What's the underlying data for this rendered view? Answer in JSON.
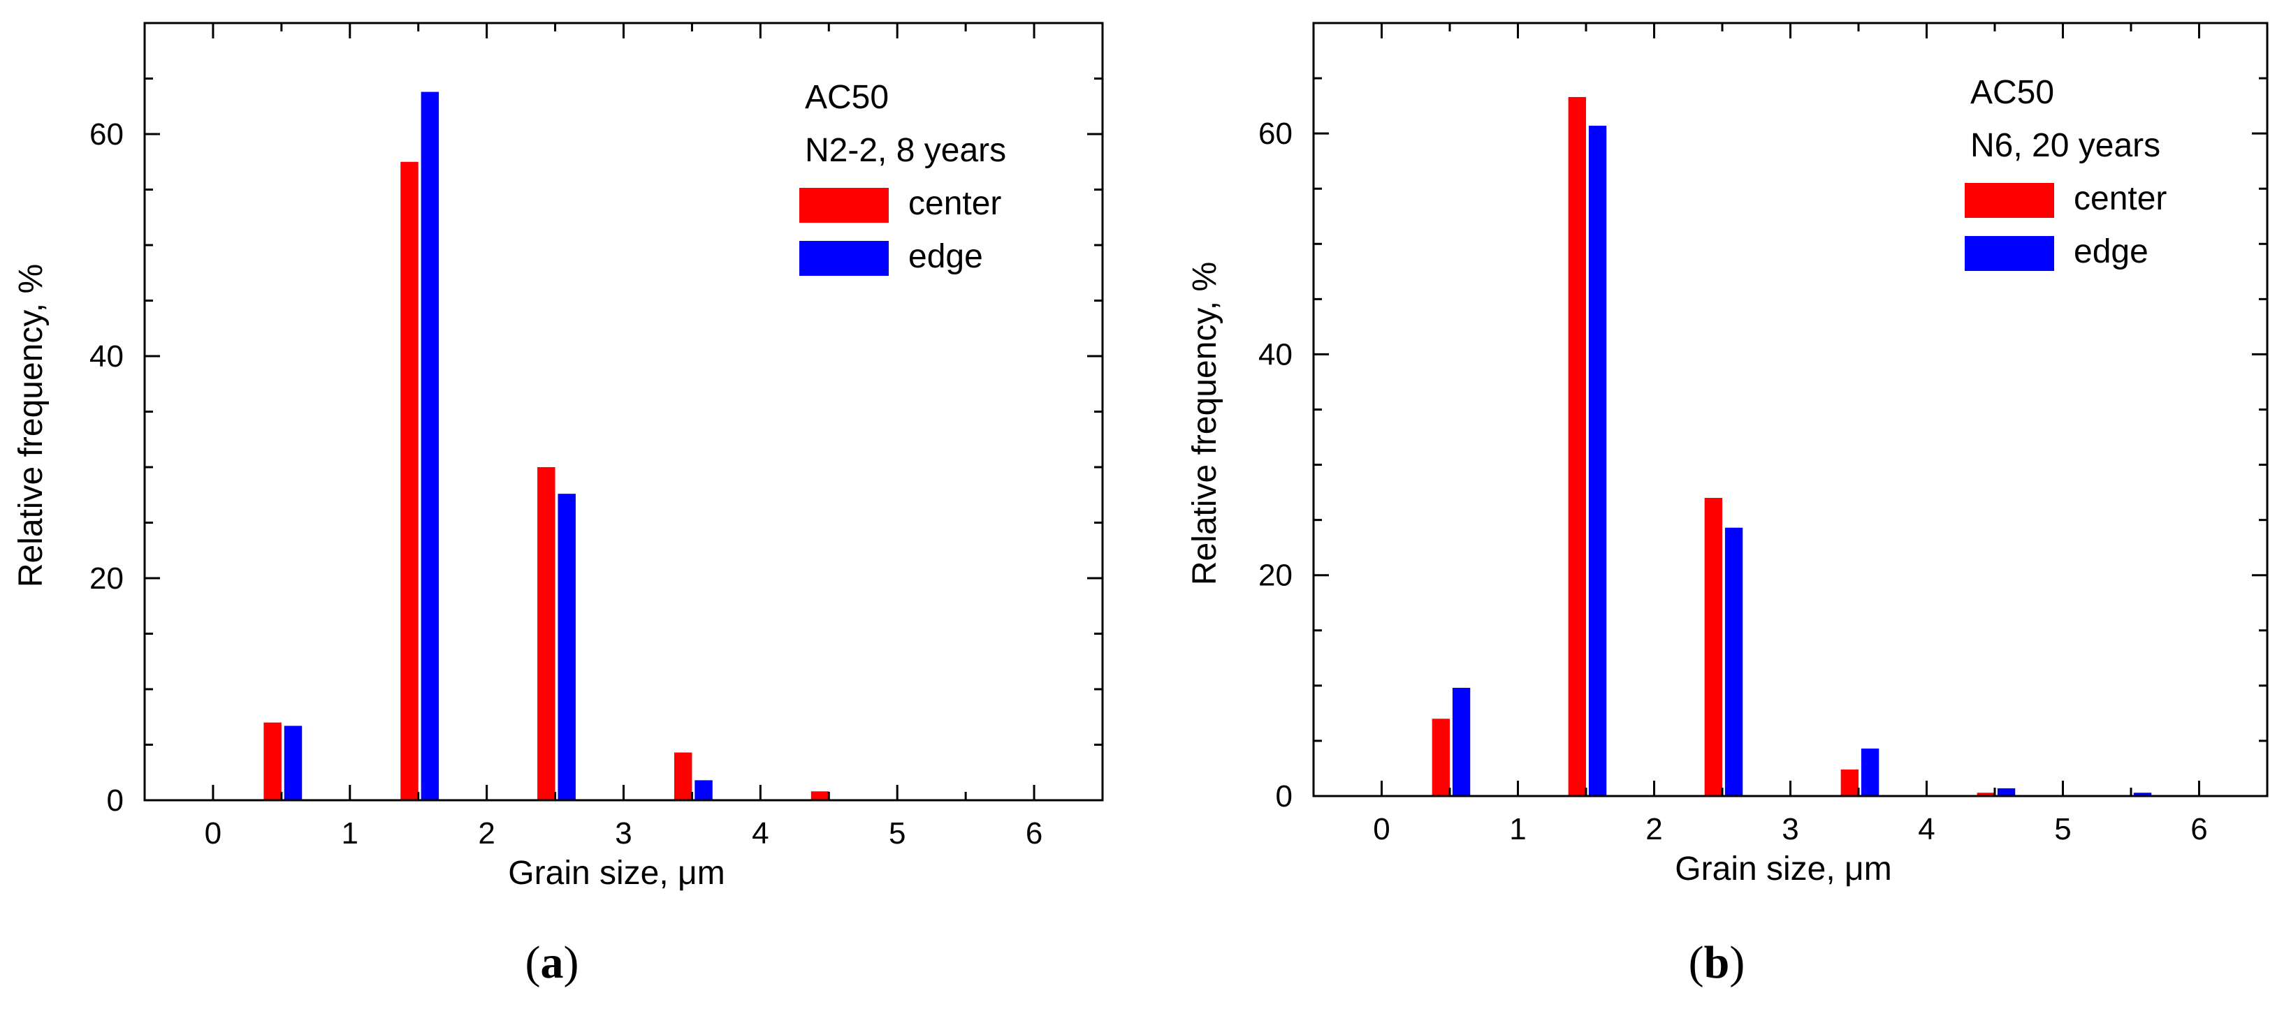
{
  "chart_data": [
    {
      "type": "bar",
      "panel_label": {
        "open": "(",
        "letter": "a",
        "close": ")"
      },
      "xlabel": "Grain size, μm",
      "ylabel": "Relative frequency, %",
      "xlim": [
        -0.5,
        6.5
      ],
      "ylim": [
        0,
        70
      ],
      "xticks": [
        0,
        1,
        2,
        3,
        4,
        5,
        6
      ],
      "xtick_labels": [
        "0",
        "1",
        "2",
        "3",
        "4",
        "5",
        "6"
      ],
      "yticks": [
        0,
        20,
        40,
        60
      ],
      "ytick_labels": [
        "0",
        "20",
        "40",
        "60"
      ],
      "legend_title": [
        "AC50",
        "N2-2, 8 years"
      ],
      "legend_position": "top-right",
      "x": [
        0.5,
        1.5,
        2.5,
        3.5,
        4.5,
        5.5
      ],
      "series": [
        {
          "name": "center",
          "color": "#ff0000",
          "values": [
            7.0,
            57.5,
            30.0,
            4.3,
            0.8,
            0
          ]
        },
        {
          "name": "edge",
          "color": "#0000ff",
          "values": [
            6.7,
            63.8,
            27.6,
            1.8,
            0,
            0
          ]
        }
      ]
    },
    {
      "type": "bar",
      "panel_label": {
        "open": "(",
        "letter": "b",
        "close": ")"
      },
      "xlabel": "Grain size, μm",
      "ylabel": "Relative frequency, %",
      "xlim": [
        -0.5,
        6.5
      ],
      "ylim": [
        0,
        70
      ],
      "xticks": [
        0,
        1,
        2,
        3,
        4,
        5,
        6
      ],
      "xtick_labels": [
        "0",
        "1",
        "2",
        "3",
        "4",
        "5",
        "6"
      ],
      "yticks": [
        0,
        20,
        40,
        60
      ],
      "ytick_labels": [
        "0",
        "20",
        "40",
        "60"
      ],
      "legend_title": [
        "AC50",
        "N6, 20 years"
      ],
      "legend_position": "top-right",
      "x": [
        0.5,
        1.5,
        2.5,
        3.5,
        4.5,
        5.5
      ],
      "series": [
        {
          "name": "center",
          "color": "#ff0000",
          "values": [
            7.0,
            63.3,
            27.0,
            2.4,
            0.3,
            0
          ]
        },
        {
          "name": "edge",
          "color": "#0000ff",
          "values": [
            9.8,
            60.7,
            24.3,
            4.3,
            0.7,
            0.3
          ]
        }
      ]
    }
  ]
}
